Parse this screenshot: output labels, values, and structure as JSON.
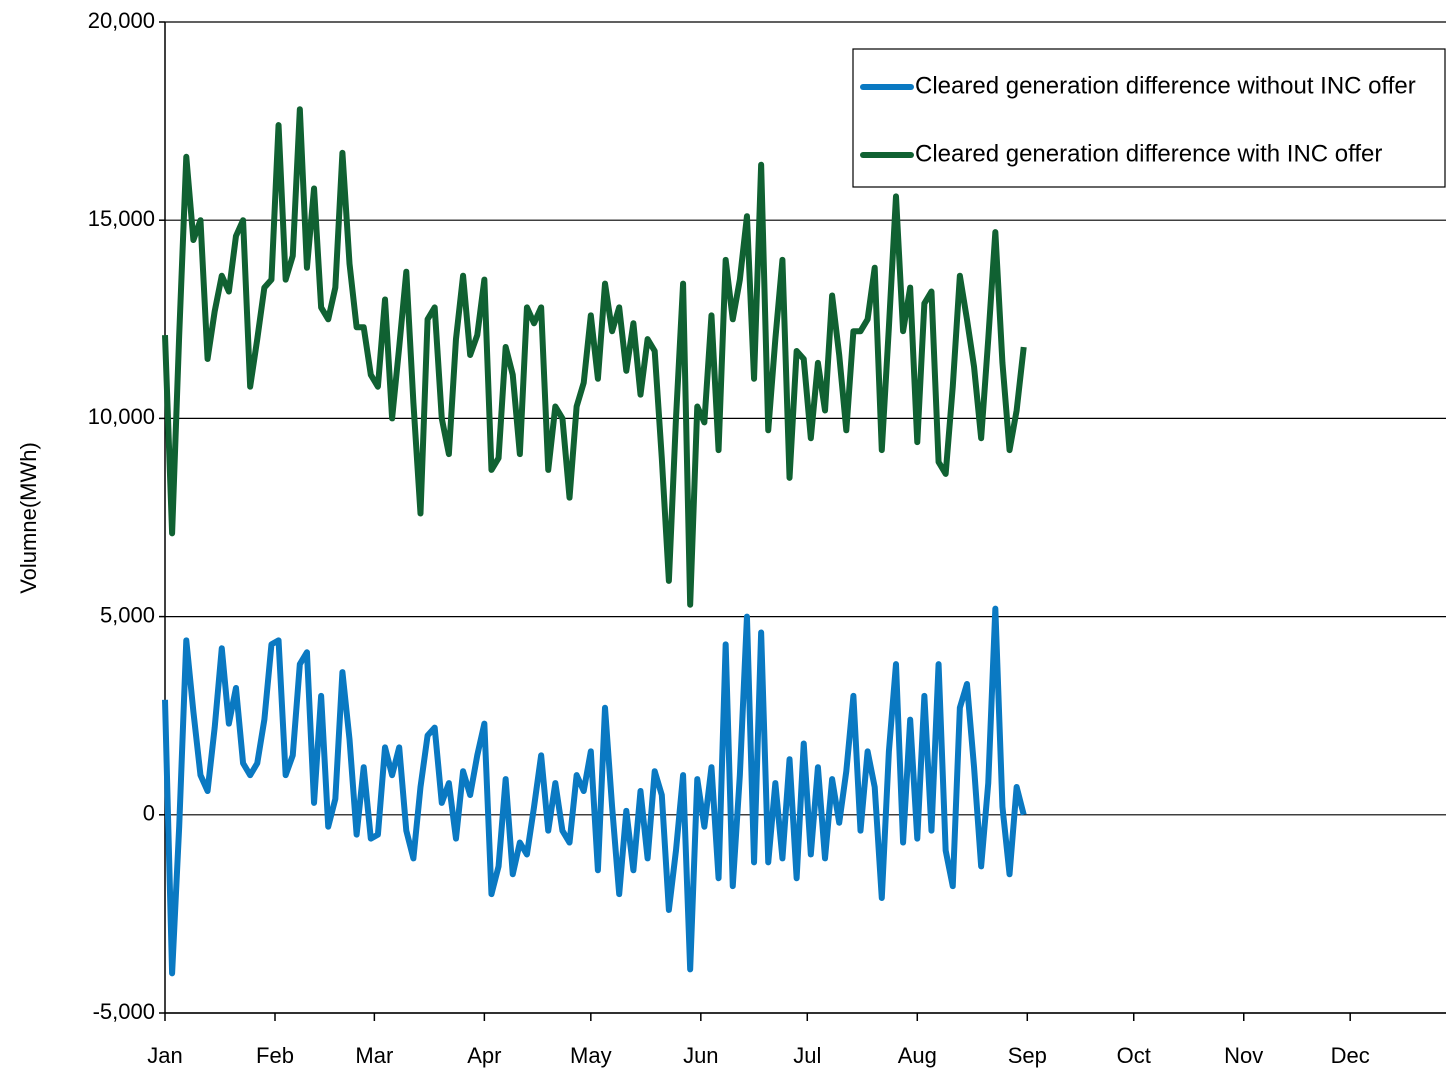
{
  "chart_data": {
    "type": "line",
    "y_label": "Volumne(MWh)",
    "legend": "upper right",
    "grid": true,
    "xlim": [
      0,
      361
    ],
    "xticks": [
      {
        "value": 0,
        "label": "Jan"
      },
      {
        "value": 31,
        "label": "Feb"
      },
      {
        "value": 59,
        "label": "Mar"
      },
      {
        "value": 90,
        "label": "Apr"
      },
      {
        "value": 120,
        "label": "May"
      },
      {
        "value": 151,
        "label": "Jun"
      },
      {
        "value": 181,
        "label": "Jul"
      },
      {
        "value": 212,
        "label": "Aug"
      },
      {
        "value": 243,
        "label": "Sep"
      },
      {
        "value": 273,
        "label": "Oct"
      },
      {
        "value": 304,
        "label": "Nov"
      },
      {
        "value": 334,
        "label": "Dec"
      }
    ],
    "ylim": [
      -5000,
      20000
    ],
    "yticks": [
      {
        "value": -5000,
        "label": "-5,000"
      },
      0,
      {
        "value": 5000,
        "label": "5,000"
      },
      {
        "value": 10000,
        "label": "10,000"
      },
      {
        "value": 15000,
        "label": "15,000"
      },
      {
        "value": 20000,
        "label": "20,000"
      }
    ],
    "x": [
      0,
      2,
      4,
      6,
      8,
      10,
      12,
      14,
      16,
      18,
      20,
      22,
      24,
      26,
      28,
      30,
      32,
      34,
      36,
      38,
      40,
      42,
      44,
      46,
      48,
      50,
      52,
      54,
      56,
      58,
      60,
      62,
      64,
      66,
      68,
      70,
      72,
      74,
      76,
      78,
      80,
      82,
      84,
      86,
      88,
      90,
      92,
      94,
      96,
      98,
      100,
      102,
      104,
      106,
      108,
      110,
      112,
      114,
      116,
      118,
      120,
      122,
      124,
      126,
      128,
      130,
      132,
      134,
      136,
      138,
      140,
      142,
      144,
      146,
      148,
      150,
      152,
      154,
      156,
      158,
      160,
      162,
      164,
      166,
      168,
      170,
      172,
      174,
      176,
      178,
      180,
      182,
      184,
      186,
      188,
      190,
      192,
      194,
      196,
      198,
      200,
      202,
      204,
      206,
      208,
      210,
      212,
      214,
      216,
      218,
      220,
      222,
      224,
      226,
      228,
      230,
      232,
      234,
      236,
      238,
      240,
      242
    ],
    "series": [
      {
        "name": "Cleared generation difference without INC offer",
        "color": "#0a79c2",
        "values": [
          2900,
          -4000,
          -300,
          4400,
          2600,
          1000,
          600,
          2200,
          4200,
          2300,
          3200,
          1300,
          1000,
          1300,
          2400,
          4300,
          4400,
          1000,
          1500,
          3800,
          4100,
          300,
          3000,
          -300,
          400,
          3600,
          1900,
          -500,
          1200,
          -600,
          -500,
          1700,
          1000,
          1700,
          -400,
          -1100,
          700,
          2000,
          2200,
          300,
          800,
          -600,
          1100,
          500,
          1500,
          2300,
          -2000,
          -1300,
          900,
          -1500,
          -700,
          -1000,
          200,
          1500,
          -400,
          800,
          -400,
          -700,
          1000,
          600,
          1600,
          -1400,
          2700,
          200,
          -2000,
          100,
          -1400,
          600,
          -1100,
          1100,
          500,
          -2400,
          -900,
          1000,
          -3900,
          900,
          -300,
          1200,
          -1600,
          4300,
          -1800,
          1000,
          5000,
          -1200,
          4600,
          -1200,
          800,
          -1100,
          1400,
          -1600,
          1800,
          -1000,
          1200,
          -1100,
          900,
          -200,
          1100,
          3000,
          -400,
          1600,
          700,
          -2100,
          1600,
          3800,
          -700,
          2400,
          -600,
          3000,
          -400,
          3800,
          -900,
          -1800,
          2700,
          3300,
          1200,
          -1300,
          800,
          5200,
          200,
          -1500,
          700,
          0
        ]
      },
      {
        "name": "Cleared generation difference with INC offer",
        "color": "#106132",
        "values": [
          12100,
          7100,
          12100,
          16600,
          14500,
          15000,
          11500,
          12700,
          13600,
          13200,
          14600,
          15000,
          10800,
          12000,
          13300,
          13500,
          17400,
          13500,
          14100,
          17800,
          13800,
          15800,
          12800,
          12500,
          13300,
          16700,
          13900,
          12300,
          12300,
          11100,
          10800,
          13000,
          10000,
          11800,
          13700,
          10400,
          7600,
          12500,
          12800,
          10000,
          9100,
          12000,
          13600,
          11600,
          12100,
          13500,
          8700,
          9000,
          11800,
          11100,
          9100,
          12800,
          12400,
          12800,
          8700,
          10300,
          10000,
          8000,
          10300,
          10900,
          12600,
          11000,
          13400,
          12200,
          12800,
          11200,
          12400,
          10600,
          12000,
          11700,
          9000,
          5900,
          10000,
          13400,
          5300,
          10300,
          9900,
          12600,
          9200,
          14000,
          12500,
          13500,
          15100,
          11000,
          16400,
          9700,
          12000,
          14000,
          8500,
          11700,
          11500,
          9500,
          11400,
          10200,
          13100,
          11600,
          9700,
          12200,
          12200,
          12500,
          13800,
          9200,
          12300,
          15600,
          12200,
          13300,
          9400,
          12900,
          13200,
          8900,
          8600,
          10800,
          13600,
          12500,
          11300,
          9500,
          12000,
          14700,
          11400,
          9200,
          10200,
          11800
        ]
      }
    ]
  }
}
